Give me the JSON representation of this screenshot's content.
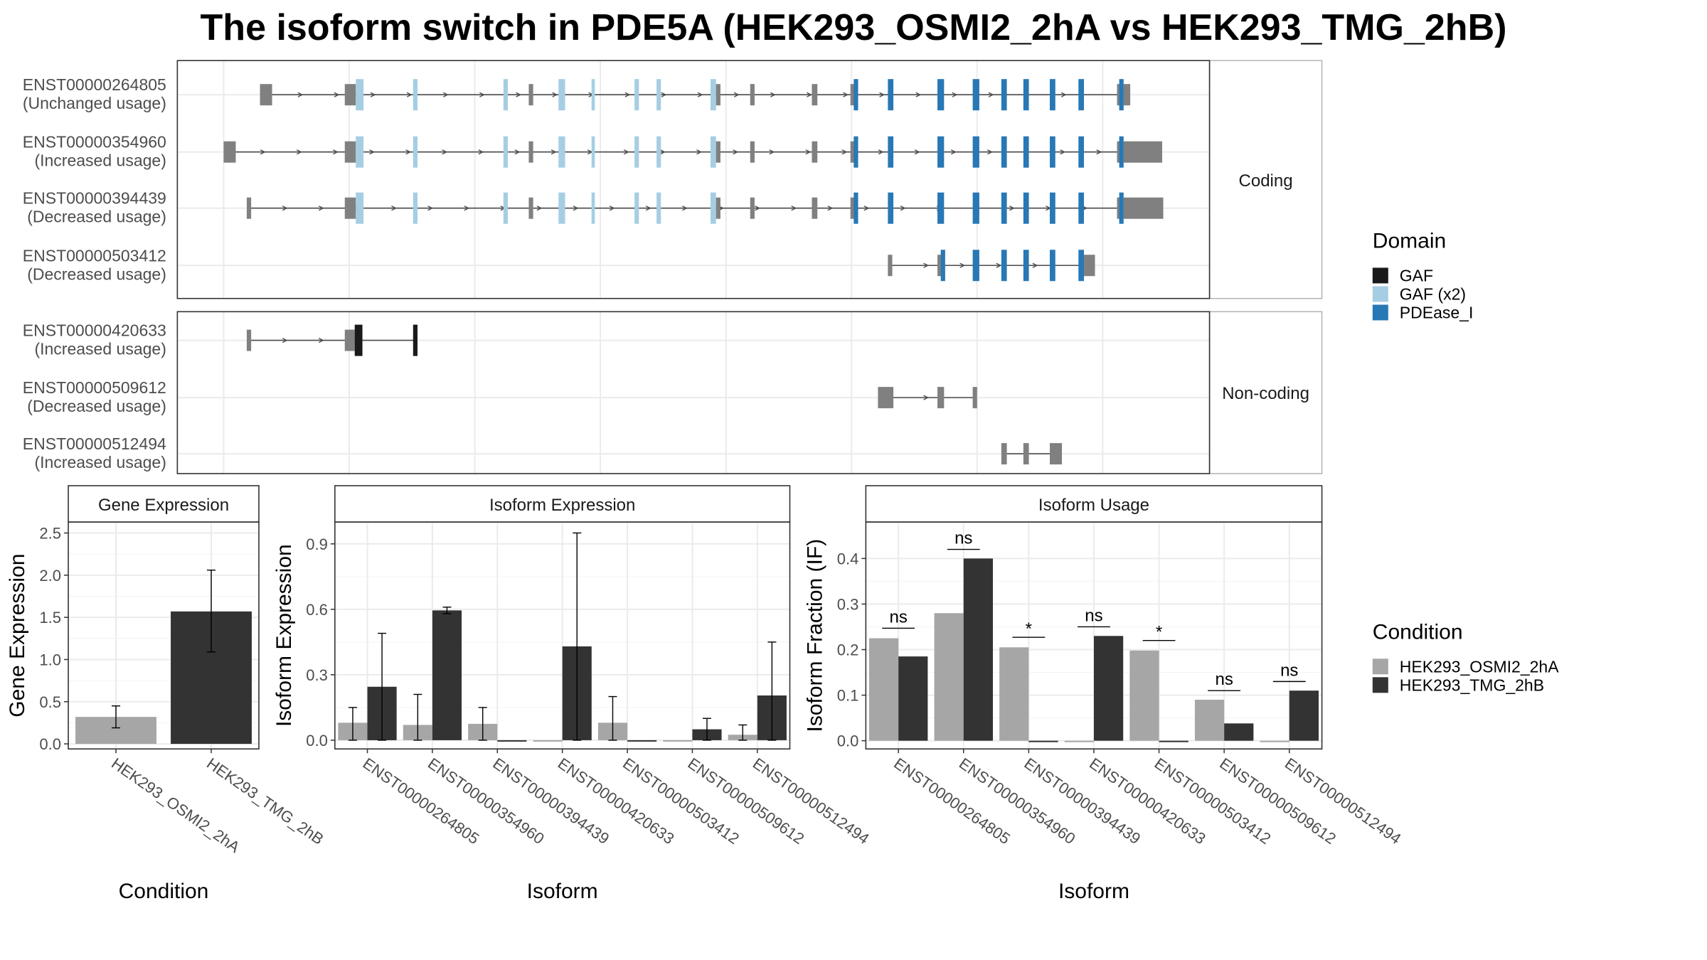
{
  "title": "The isoform switch in PDE5A (HEK293_OSMI2_2hA vs HEK293_TMG_2hB)",
  "colors": {
    "intron": "#4d4d4d",
    "utr": "#808080",
    "GAF": "#1a1a1a",
    "GAF (x2)": "#a6cee3",
    "PDEase_I": "#2878b5",
    "HEK293_OSMI2_2hA": "#a6a6a6",
    "HEK293_TMG_2hB": "#333333"
  },
  "legend_domain": {
    "title": "Domain",
    "items": [
      {
        "label": "GAF",
        "color": "#1a1a1a"
      },
      {
        "label": "GAF (x2)",
        "color": "#a6cee3"
      },
      {
        "label": "PDEase_I",
        "color": "#2878b5"
      }
    ]
  },
  "legend_condition": {
    "title": "Condition",
    "items": [
      {
        "label": "HEK293_OSMI2_2hA",
        "color": "#a6a6a6"
      },
      {
        "label": "HEK293_TMG_2hB",
        "color": "#333333"
      }
    ]
  },
  "structure": {
    "groups": [
      {
        "label": "Coding",
        "isoforms": [
          {
            "id": "ENST00000264805",
            "usage": "(Unchanged usage)",
            "span": [
              240,
              1024
            ],
            "exons": [
              [
                236,
                247,
                "utr"
              ],
              [
                313,
                323,
                "utr"
              ],
              [
                323,
                330,
                "GAF (x2)"
              ],
              [
                375,
                379,
                "GAF (x2)"
              ],
              [
                457,
                461,
                "GAF (x2)"
              ],
              [
                480,
                484,
                "utr"
              ],
              [
                507,
                513,
                "GAF (x2)"
              ],
              [
                537,
                540,
                "GAF (x2)"
              ],
              [
                576,
                580,
                "GAF (x2)"
              ],
              [
                596,
                600,
                "GAF (x2)"
              ],
              [
                645,
                650,
                "GAF (x2)"
              ],
              [
                650,
                654,
                "utr"
              ],
              [
                681,
                685,
                "utr"
              ],
              [
                737,
                742,
                "utr"
              ],
              [
                772,
                776,
                "utr"
              ],
              [
                775,
                779,
                "PDEase_I"
              ],
              [
                806,
                811,
                "PDEase_I"
              ],
              [
                851,
                857,
                "PDEase_I"
              ],
              [
                883,
                889,
                "PDEase_I"
              ],
              [
                909,
                914,
                "PDEase_I"
              ],
              [
                929,
                934,
                "PDEase_I"
              ],
              [
                953,
                958,
                "PDEase_I"
              ],
              [
                979,
                984,
                "PDEase_I"
              ],
              [
                1014,
                1020,
                "utr"
              ],
              [
                1016,
                1020,
                "PDEase_I"
              ],
              [
                1020,
                1026,
                "utr"
              ]
            ]
          },
          {
            "id": "ENST00000354960",
            "usage": "(Increased usage)",
            "span": [
              206,
              1050
            ],
            "exons": [
              [
                203,
                214,
                "utr"
              ],
              [
                313,
                323,
                "utr"
              ],
              [
                323,
                330,
                "GAF (x2)"
              ],
              [
                375,
                379,
                "GAF (x2)"
              ],
              [
                457,
                461,
                "GAF (x2)"
              ],
              [
                480,
                484,
                "utr"
              ],
              [
                507,
                513,
                "GAF (x2)"
              ],
              [
                537,
                540,
                "GAF (x2)"
              ],
              [
                576,
                580,
                "GAF (x2)"
              ],
              [
                596,
                600,
                "GAF (x2)"
              ],
              [
                645,
                650,
                "GAF (x2)"
              ],
              [
                650,
                654,
                "utr"
              ],
              [
                681,
                685,
                "utr"
              ],
              [
                737,
                742,
                "utr"
              ],
              [
                772,
                776,
                "utr"
              ],
              [
                775,
                779,
                "PDEase_I"
              ],
              [
                806,
                811,
                "PDEase_I"
              ],
              [
                851,
                857,
                "PDEase_I"
              ],
              [
                883,
                889,
                "PDEase_I"
              ],
              [
                909,
                914,
                "PDEase_I"
              ],
              [
                929,
                934,
                "PDEase_I"
              ],
              [
                953,
                958,
                "PDEase_I"
              ],
              [
                979,
                984,
                "PDEase_I"
              ],
              [
                1014,
                1020,
                "utr"
              ],
              [
                1016,
                1020,
                "PDEase_I"
              ],
              [
                1020,
                1055,
                "utr"
              ]
            ]
          },
          {
            "id": "ENST00000394439",
            "usage": "(Decreased usage)",
            "span": [
              226,
              1050
            ],
            "exons": [
              [
                224,
                228,
                "utr"
              ],
              [
                313,
                323,
                "utr"
              ],
              [
                323,
                330,
                "GAF (x2)"
              ],
              [
                375,
                379,
                "GAF (x2)"
              ],
              [
                457,
                461,
                "GAF (x2)"
              ],
              [
                480,
                484,
                "utr"
              ],
              [
                507,
                513,
                "GAF (x2)"
              ],
              [
                537,
                540,
                "GAF (x2)"
              ],
              [
                576,
                580,
                "GAF (x2)"
              ],
              [
                596,
                600,
                "GAF (x2)"
              ],
              [
                645,
                650,
                "GAF (x2)"
              ],
              [
                650,
                654,
                "utr"
              ],
              [
                681,
                685,
                "utr"
              ],
              [
                737,
                742,
                "utr"
              ],
              [
                772,
                776,
                "utr"
              ],
              [
                775,
                779,
                "PDEase_I"
              ],
              [
                806,
                811,
                "PDEase_I"
              ],
              [
                851,
                857,
                "PDEase_I"
              ],
              [
                883,
                889,
                "PDEase_I"
              ],
              [
                909,
                914,
                "PDEase_I"
              ],
              [
                929,
                934,
                "PDEase_I"
              ],
              [
                953,
                958,
                "PDEase_I"
              ],
              [
                979,
                984,
                "PDEase_I"
              ],
              [
                1014,
                1020,
                "utr"
              ],
              [
                1016,
                1020,
                "PDEase_I"
              ],
              [
                1020,
                1056,
                "utr"
              ]
            ]
          },
          {
            "id": "ENST00000503412",
            "usage": "(Decreased usage)",
            "span": [
              808,
              990
            ],
            "exons": [
              [
                806,
                810,
                "utr"
              ],
              [
                851,
                855,
                "utr"
              ],
              [
                854,
                858,
                "PDEase_I"
              ],
              [
                883,
                889,
                "PDEase_I"
              ],
              [
                909,
                914,
                "PDEase_I"
              ],
              [
                929,
                934,
                "PDEase_I"
              ],
              [
                953,
                958,
                "PDEase_I"
              ],
              [
                979,
                984,
                "PDEase_I"
              ],
              [
                984,
                994,
                "utr"
              ]
            ]
          }
        ]
      },
      {
        "label": "Non-coding",
        "isoforms": [
          {
            "id": "ENST00000420633",
            "usage": "(Increased usage)",
            "span": [
              226,
              378
            ],
            "exons": [
              [
                224,
                228,
                "utr"
              ],
              [
                313,
                322,
                "utr"
              ],
              [
                322,
                329,
                "GAF"
              ],
              [
                375,
                379,
                "GAF"
              ]
            ]
          },
          {
            "id": "ENST00000509612",
            "usage": "(Decreased usage)",
            "span": [
              808,
              886
            ],
            "exons": [
              [
                797,
                811,
                "utr"
              ],
              [
                851,
                857,
                "utr"
              ],
              [
                883,
                887,
                "utr"
              ]
            ]
          },
          {
            "id": "ENST00000512494",
            "usage": "(Increased usage)",
            "span": [
              912,
              960
            ],
            "exons": [
              [
                909,
                914,
                "utr"
              ],
              [
                929,
                934,
                "utr"
              ],
              [
                953,
                964,
                "utr"
              ]
            ]
          }
        ]
      }
    ]
  },
  "chart_data": [
    {
      "type": "bar",
      "title": "Gene Expression",
      "xlabel": "Condition",
      "ylabel": "Gene Expression",
      "ylim": [
        -0.06,
        2.63
      ],
      "yticks": [
        "0.0",
        "0.5",
        "1.0",
        "1.5",
        "2.0",
        "2.5"
      ],
      "categories": [
        "HEK293_OSMI2_2hA",
        "HEK293_TMG_2hB"
      ],
      "values": [
        0.32,
        1.57
      ],
      "error_low": [
        0.19,
        1.09
      ],
      "error_high": [
        0.45,
        2.06
      ]
    },
    {
      "type": "bar",
      "title": "Isoform Expression",
      "xlabel": "Isoform",
      "ylabel": "Isoform Expression",
      "ylim": [
        -0.04,
        1.0
      ],
      "yticks": [
        "0.0",
        "0.3",
        "0.6",
        "0.9"
      ],
      "categories": [
        "ENST00000264805",
        "ENST00000354960",
        "ENST00000394439",
        "ENST00000420633",
        "ENST00000503412",
        "ENST00000509612",
        "ENST00000512494"
      ],
      "series": [
        {
          "name": "HEK293_OSMI2_2hA",
          "values": [
            0.08,
            0.07,
            0.075,
            0.0,
            0.08,
            0.0,
            0.025
          ],
          "error_low": [
            0.0,
            0.0,
            0.0,
            0.0,
            0.0,
            0.0,
            0.0
          ],
          "error_high": [
            0.15,
            0.21,
            0.15,
            0.0,
            0.2,
            0.0,
            0.07
          ]
        },
        {
          "name": "HEK293_TMG_2hB",
          "values": [
            0.245,
            0.595,
            0.0,
            0.43,
            0.0,
            0.05,
            0.205
          ],
          "error_low": [
            0.0,
            0.58,
            0.0,
            0.0,
            0.0,
            0.0,
            0.0
          ],
          "error_high": [
            0.49,
            0.61,
            0.0,
            0.95,
            0.0,
            0.1,
            0.45
          ]
        }
      ]
    },
    {
      "type": "bar",
      "title": "Isoform Usage",
      "xlabel": "Isoform",
      "ylabel": "Isoform Fraction (IF)",
      "ylim": [
        -0.018,
        0.48
      ],
      "yticks": [
        "0.0",
        "0.1",
        "0.2",
        "0.3",
        "0.4"
      ],
      "categories": [
        "ENST00000264805",
        "ENST00000354960",
        "ENST00000394439",
        "ENST00000420633",
        "ENST00000503412",
        "ENST00000509612",
        "ENST00000512494"
      ],
      "series": [
        {
          "name": "HEK293_OSMI2_2hA",
          "values": [
            0.225,
            0.28,
            0.205,
            0.0,
            0.198,
            0.09,
            0.0
          ]
        },
        {
          "name": "HEK293_TMG_2hB",
          "values": [
            0.185,
            0.4,
            0.0,
            0.23,
            0.0,
            0.038,
            0.11
          ]
        }
      ],
      "significance": [
        "ns",
        "ns",
        "*",
        "ns",
        "*",
        "ns",
        "ns"
      ],
      "significance_y": [
        0.247,
        0.42,
        0.227,
        0.25,
        0.22,
        0.11,
        0.13
      ]
    }
  ]
}
